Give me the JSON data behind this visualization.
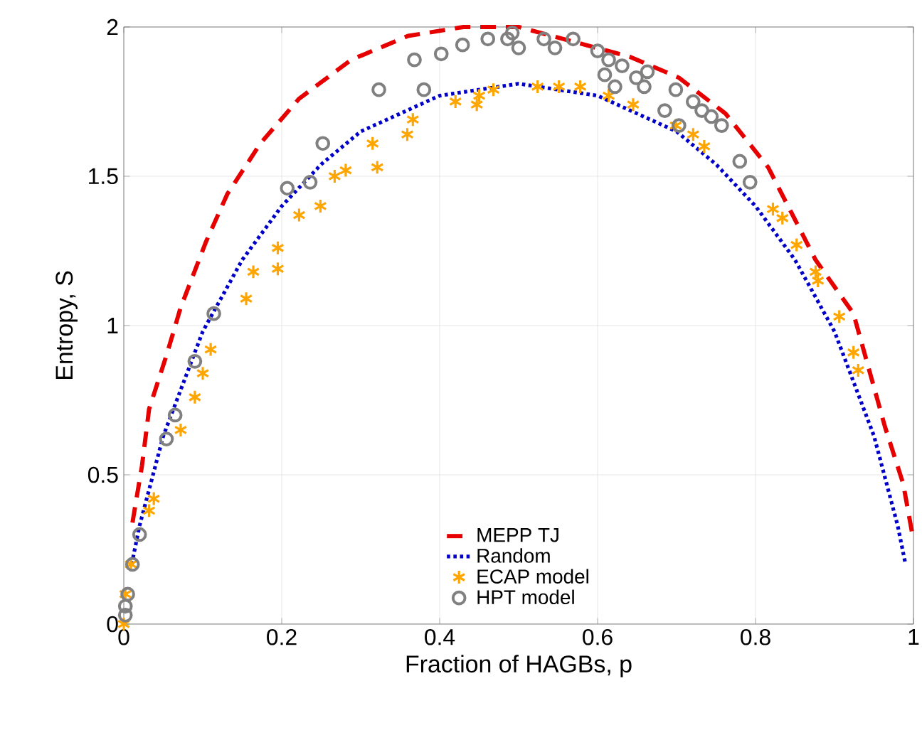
{
  "chart_data": {
    "type": "line",
    "xlabel": "Fraction of HAGBs, p",
    "ylabel": "Entropy, S",
    "xlim": [
      0,
      1
    ],
    "ylim": [
      0,
      2
    ],
    "xticks": [
      0,
      0.2,
      0.4,
      0.6,
      0.8,
      1
    ],
    "yticks": [
      0,
      0.5,
      1,
      1.5,
      2
    ],
    "grid": true,
    "legend": "bottom",
    "series": [
      {
        "name": "MEPP TJ",
        "line_style": "dashed",
        "marker": "none",
        "color": "#e60000",
        "x": [
          0.011,
          0.023,
          0.032,
          0.054,
          0.072,
          0.104,
          0.131,
          0.173,
          0.222,
          0.288,
          0.36,
          0.43,
          0.5,
          0.641,
          0.703,
          0.762,
          0.816,
          0.876,
          0.924,
          0.964,
          0.987,
          1.0
        ],
        "values": [
          0.34,
          0.53,
          0.72,
          0.9,
          1.06,
          1.28,
          1.44,
          1.61,
          1.76,
          1.89,
          1.97,
          2.0,
          2.0,
          1.9,
          1.83,
          1.71,
          1.53,
          1.22,
          1.04,
          0.66,
          0.47,
          0.28
        ]
      },
      {
        "name": "Random",
        "line_style": "dotted",
        "marker": "none",
        "color": "#0000c8",
        "x": [
          0.01,
          0.02,
          0.05,
          0.1,
          0.15,
          0.2,
          0.25,
          0.3,
          0.4,
          0.5,
          0.6,
          0.7,
          0.75,
          0.8,
          0.85,
          0.9,
          0.95,
          0.98,
          0.99
        ],
        "values": [
          0.2,
          0.33,
          0.63,
          0.98,
          1.22,
          1.4,
          1.54,
          1.65,
          1.77,
          1.81,
          1.77,
          1.65,
          1.54,
          1.4,
          1.22,
          0.98,
          0.63,
          0.33,
          0.2
        ]
      },
      {
        "name": "ECAP model",
        "type": "scatter",
        "marker": "cross",
        "color": "#ffa500",
        "x": [
          0.0,
          0.002,
          0.009,
          0.032,
          0.038,
          0.072,
          0.09,
          0.1,
          0.11,
          0.155,
          0.164,
          0.195,
          0.195,
          0.222,
          0.249,
          0.267,
          0.281,
          0.315,
          0.321,
          0.359,
          0.366,
          0.42,
          0.447,
          0.45,
          0.468,
          0.524,
          0.551,
          0.578,
          0.614,
          0.645,
          0.699,
          0.721,
          0.735,
          0.822,
          0.834,
          0.852,
          0.876,
          0.879,
          0.906,
          0.924,
          0.93
        ],
        "values": [
          0.0,
          0.1,
          0.2,
          0.38,
          0.42,
          0.65,
          0.76,
          0.84,
          0.92,
          1.09,
          1.18,
          1.19,
          1.26,
          1.37,
          1.4,
          1.5,
          1.52,
          1.61,
          1.53,
          1.64,
          1.69,
          1.75,
          1.74,
          1.77,
          1.79,
          1.8,
          1.8,
          1.8,
          1.77,
          1.74,
          1.67,
          1.64,
          1.6,
          1.39,
          1.36,
          1.27,
          1.18,
          1.15,
          1.03,
          0.91,
          0.85
        ]
      },
      {
        "name": "HPT model",
        "type": "scatter",
        "marker": "circle",
        "color": "#808080",
        "x": [
          0.002,
          0.002,
          0.005,
          0.011,
          0.02,
          0.054,
          0.065,
          0.09,
          0.114,
          0.207,
          0.236,
          0.252,
          0.323,
          0.38,
          0.368,
          0.402,
          0.429,
          0.461,
          0.486,
          0.492,
          0.5,
          0.532,
          0.546,
          0.569,
          0.6,
          0.614,
          0.631,
          0.609,
          0.622,
          0.649,
          0.663,
          0.659,
          0.685,
          0.699,
          0.703,
          0.721,
          0.732,
          0.744,
          0.757,
          0.78,
          0.793
        ],
        "values": [
          0.03,
          0.06,
          0.1,
          0.2,
          0.3,
          0.62,
          0.7,
          0.88,
          1.04,
          1.46,
          1.48,
          1.61,
          1.79,
          1.79,
          1.89,
          1.91,
          1.94,
          1.96,
          1.96,
          1.98,
          1.93,
          1.96,
          1.93,
          1.96,
          1.92,
          1.89,
          1.87,
          1.84,
          1.8,
          1.83,
          1.85,
          1.8,
          1.72,
          1.79,
          1.67,
          1.75,
          1.72,
          1.7,
          1.67,
          1.55,
          1.48
        ]
      }
    ]
  }
}
